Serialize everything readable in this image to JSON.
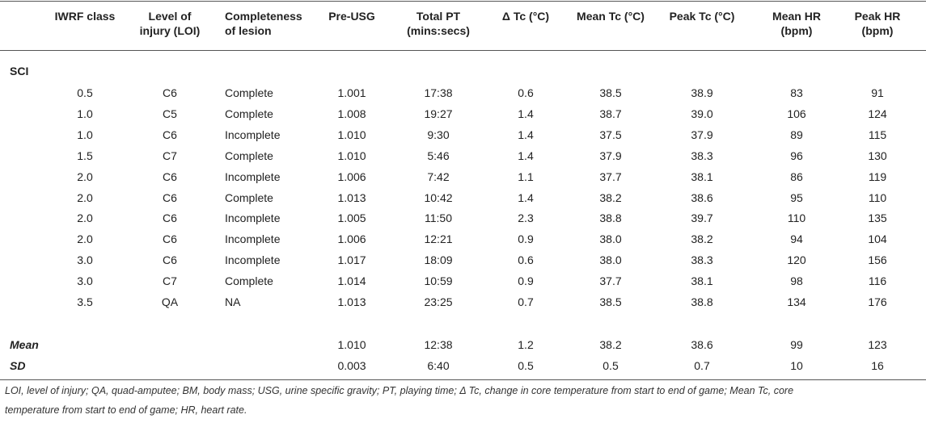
{
  "table": {
    "header": [
      [
        "IWRF class"
      ],
      [
        "Level of",
        "injury (LOI)"
      ],
      [
        "Completeness",
        "of lesion"
      ],
      [
        "Pre-USG"
      ],
      [
        "Total PT",
        "(mins:secs)"
      ],
      [
        "Δ Tc (°C)"
      ],
      [
        "Mean Tc (°C)"
      ],
      [
        "Peak Tc (°C)"
      ],
      [
        "Mean HR",
        "(bpm)"
      ],
      [
        "Peak HR",
        "(bpm)"
      ]
    ],
    "section": "SCI",
    "rows": [
      [
        "0.5",
        "C6",
        "Complete",
        "1.001",
        "17:38",
        "0.6",
        "38.5",
        "38.9",
        "83",
        "91"
      ],
      [
        "1.0",
        "C5",
        "Complete",
        "1.008",
        "19:27",
        "1.4",
        "38.7",
        "39.0",
        "106",
        "124"
      ],
      [
        "1.0",
        "C6",
        "Incomplete",
        "1.010",
        "9:30",
        "1.4",
        "37.5",
        "37.9",
        "89",
        "115"
      ],
      [
        "1.5",
        "C7",
        "Complete",
        "1.010",
        "5:46",
        "1.4",
        "37.9",
        "38.3",
        "96",
        "130"
      ],
      [
        "2.0",
        "C6",
        "Incomplete",
        "1.006",
        "7:42",
        "1.1",
        "37.7",
        "38.1",
        "86",
        "119"
      ],
      [
        "2.0",
        "C6",
        "Complete",
        "1.013",
        "10:42",
        "1.4",
        "38.2",
        "38.6",
        "95",
        "110"
      ],
      [
        "2.0",
        "C6",
        "Incomplete",
        "1.005",
        "11:50",
        "2.3",
        "38.8",
        "39.7",
        "110",
        "135"
      ],
      [
        "2.0",
        "C6",
        "Incomplete",
        "1.006",
        "12:21",
        "0.9",
        "38.0",
        "38.2",
        "94",
        "104"
      ],
      [
        "3.0",
        "C6",
        "Incomplete",
        "1.017",
        "18:09",
        "0.6",
        "38.0",
        "38.3",
        "120",
        "156"
      ],
      [
        "3.0",
        "C7",
        "Complete",
        "1.014",
        "10:59",
        "0.9",
        "37.7",
        "38.1",
        "98",
        "116"
      ],
      [
        "3.5",
        "QA",
        "NA",
        "1.013",
        "23:25",
        "0.7",
        "38.5",
        "38.8",
        "134",
        "176"
      ]
    ],
    "summary": [
      {
        "label": "Mean",
        "values": [
          "1.010",
          "12:38",
          "1.2",
          "38.2",
          "38.6",
          "99",
          "123"
        ]
      },
      {
        "label": "SD",
        "values": [
          "0.003",
          "6:40",
          "0.5",
          "0.5",
          "0.7",
          "10",
          "16"
        ]
      }
    ],
    "footnote": [
      "LOI, level of injury; QA, quad-amputee; BM, body mass; USG, urine specific gravity; PT, playing time; Δ Tc, change in core temperature from start to end of game; Mean Tc, core",
      "temperature from start to end of game; HR, heart rate."
    ]
  }
}
